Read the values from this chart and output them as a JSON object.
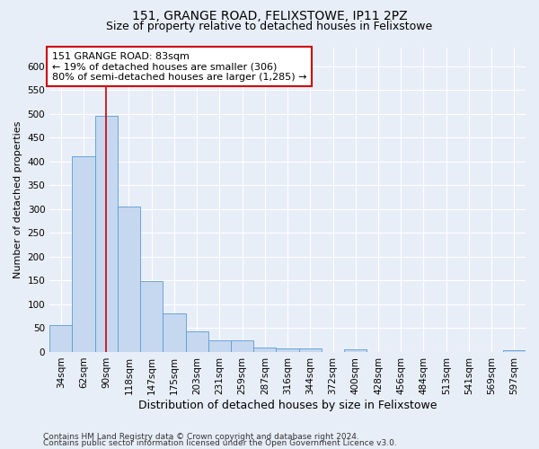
{
  "title1": "151, GRANGE ROAD, FELIXSTOWE, IP11 2PZ",
  "title2": "Size of property relative to detached houses in Felixstowe",
  "xlabel": "Distribution of detached houses by size in Felixstowe",
  "ylabel": "Number of detached properties",
  "categories": [
    "34sqm",
    "62sqm",
    "90sqm",
    "118sqm",
    "147sqm",
    "175sqm",
    "203sqm",
    "231sqm",
    "259sqm",
    "287sqm",
    "316sqm",
    "344sqm",
    "372sqm",
    "400sqm",
    "428sqm",
    "456sqm",
    "484sqm",
    "513sqm",
    "541sqm",
    "569sqm",
    "597sqm"
  ],
  "values": [
    57,
    411,
    495,
    306,
    148,
    81,
    44,
    24,
    24,
    10,
    7,
    7,
    0,
    5,
    0,
    0,
    0,
    0,
    0,
    0,
    4
  ],
  "bar_color": "#c5d8f0",
  "bar_edge_color": "#5b9bd5",
  "vline_x": 1.98,
  "vline_color": "#cc0000",
  "annotation_text": "151 GRANGE ROAD: 83sqm\n← 19% of detached houses are smaller (306)\n80% of semi-detached houses are larger (1,285) →",
  "annotation_box_facecolor": "#ffffff",
  "annotation_box_edgecolor": "#cc0000",
  "ylim": [
    0,
    640
  ],
  "yticks": [
    0,
    50,
    100,
    150,
    200,
    250,
    300,
    350,
    400,
    450,
    500,
    550,
    600
  ],
  "footer1": "Contains HM Land Registry data © Crown copyright and database right 2024.",
  "footer2": "Contains public sector information licensed under the Open Government Licence v3.0.",
  "background_color": "#e8eef8",
  "grid_color": "#ffffff",
  "title1_fontsize": 10,
  "title2_fontsize": 9,
  "xlabel_fontsize": 9,
  "ylabel_fontsize": 8,
  "tick_fontsize": 7.5,
  "annotation_fontsize": 8,
  "footer_fontsize": 6.5
}
